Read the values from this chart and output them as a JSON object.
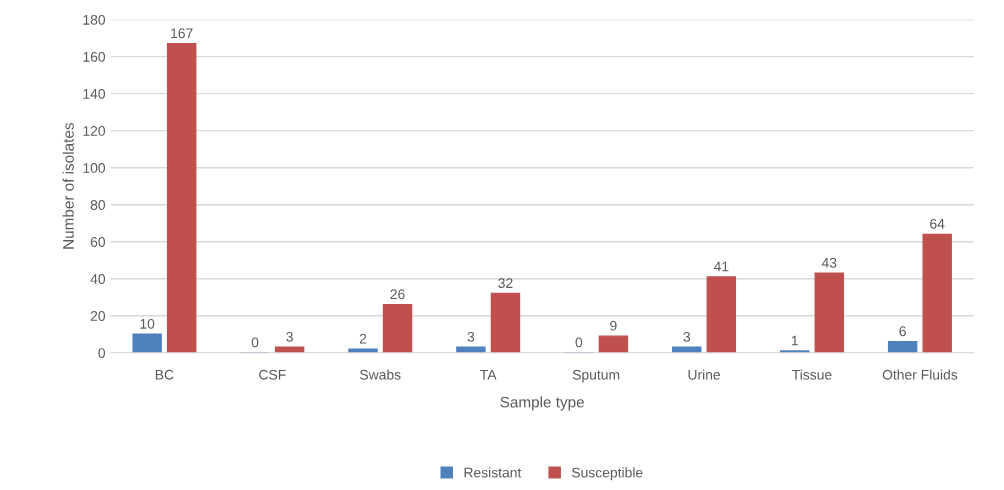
{
  "chart_data": {
    "type": "bar",
    "xlabel": "Sample type",
    "ylabel": "Number of isolates",
    "categories": [
      "BC",
      "CSF",
      "Swabs",
      "TA",
      "Sputum",
      "Urine",
      "Tissue",
      "Other Fluids"
    ],
    "series": [
      {
        "name": "Resistant",
        "color": "#4f81bd",
        "values": [
          10,
          0,
          2,
          3,
          0,
          3,
          1,
          6
        ]
      },
      {
        "name": "Susceptible",
        "color": "#c0504d",
        "values": [
          167,
          3,
          26,
          32,
          9,
          41,
          43,
          64
        ]
      }
    ],
    "ylim": [
      0,
      180
    ],
    "yticks": [
      0,
      20,
      40,
      60,
      80,
      100,
      120,
      140,
      160,
      180
    ],
    "grid": "y",
    "legend": "bottom",
    "data_labels": true
  }
}
